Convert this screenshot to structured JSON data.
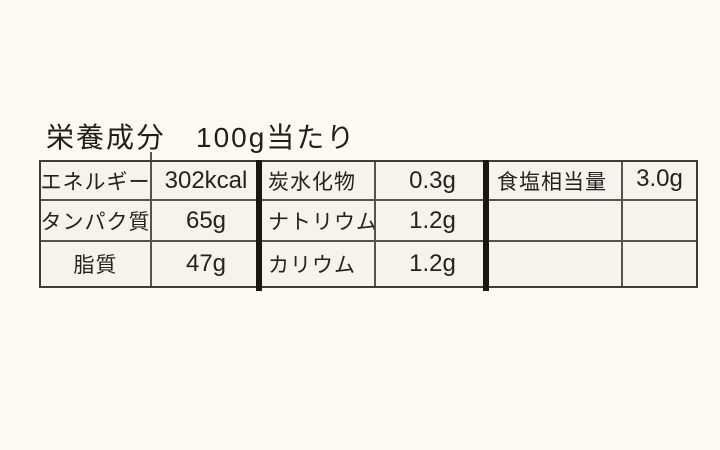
{
  "label": {
    "title": "栄養成分　100g当たり"
  },
  "table": {
    "rows": [
      {
        "cells": [
          "エネルギー",
          "302kcal",
          "炭水化物",
          "0.3g",
          "食塩相当量",
          "3.0g"
        ]
      },
      {
        "cells": [
          "タンパク質",
          "65g",
          "ナトリウム",
          "1.2g",
          "",
          ""
        ]
      },
      {
        "cells": [
          "脂質",
          "47g",
          "カリウム",
          "1.2g",
          "",
          ""
        ]
      }
    ]
  },
  "colors": {
    "page_background": "#fdf9f0",
    "table_background": "#f5f3ec",
    "thin_line": "#575349",
    "thick_divider": "#181714",
    "text": "#24221e"
  }
}
